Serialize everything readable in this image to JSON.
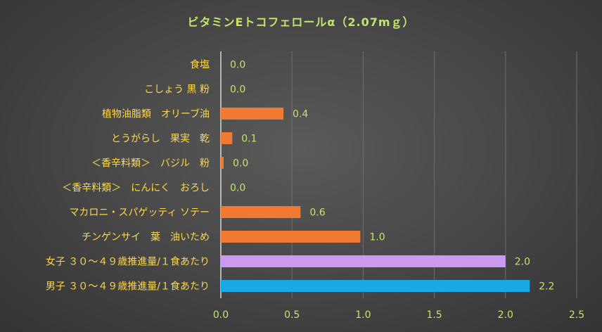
{
  "chart_data": {
    "type": "bar",
    "orientation": "horizontal",
    "title": "ビタミンEトコフェロールα（2.07mｇ）",
    "xlabel": "",
    "ylabel": "",
    "xlim": [
      0,
      2.5
    ],
    "x_ticks": [
      "0.0",
      "0.5",
      "1.0",
      "1.5",
      "2.0",
      "2.5"
    ],
    "grid": true,
    "legend": "none",
    "categories": [
      "食塩",
      "こしょう 黒 粉",
      "植物油脂類　オリーブ油",
      "とうがらし　果実　乾",
      "＜香辛料類＞　バジル　粉",
      "＜香辛料類＞　にんにく　おろし",
      "マカロニ・スパゲッティ ソテー",
      "チンゲンサイ　葉　油いため",
      "女子 ３０～４９歳推進量/１食あたり",
      "男子 ３０～４９歳推進量/１食あたり"
    ],
    "values": [
      0.0,
      0.0,
      0.44,
      0.08,
      0.02,
      0.0,
      0.56,
      0.98,
      2.0,
      2.17
    ],
    "value_labels": [
      "0.0",
      "0.0",
      "0.4",
      "0.1",
      "0.0",
      "0.0",
      "0.6",
      "1.0",
      "2.0",
      "2.2"
    ],
    "bar_colors": [
      "#f07a32",
      "#f07a32",
      "#f07a32",
      "#f07a32",
      "#f07a32",
      "#f07a32",
      "#f07a32",
      "#f07a32",
      "#cc99f0",
      "#1aa8e6"
    ]
  }
}
